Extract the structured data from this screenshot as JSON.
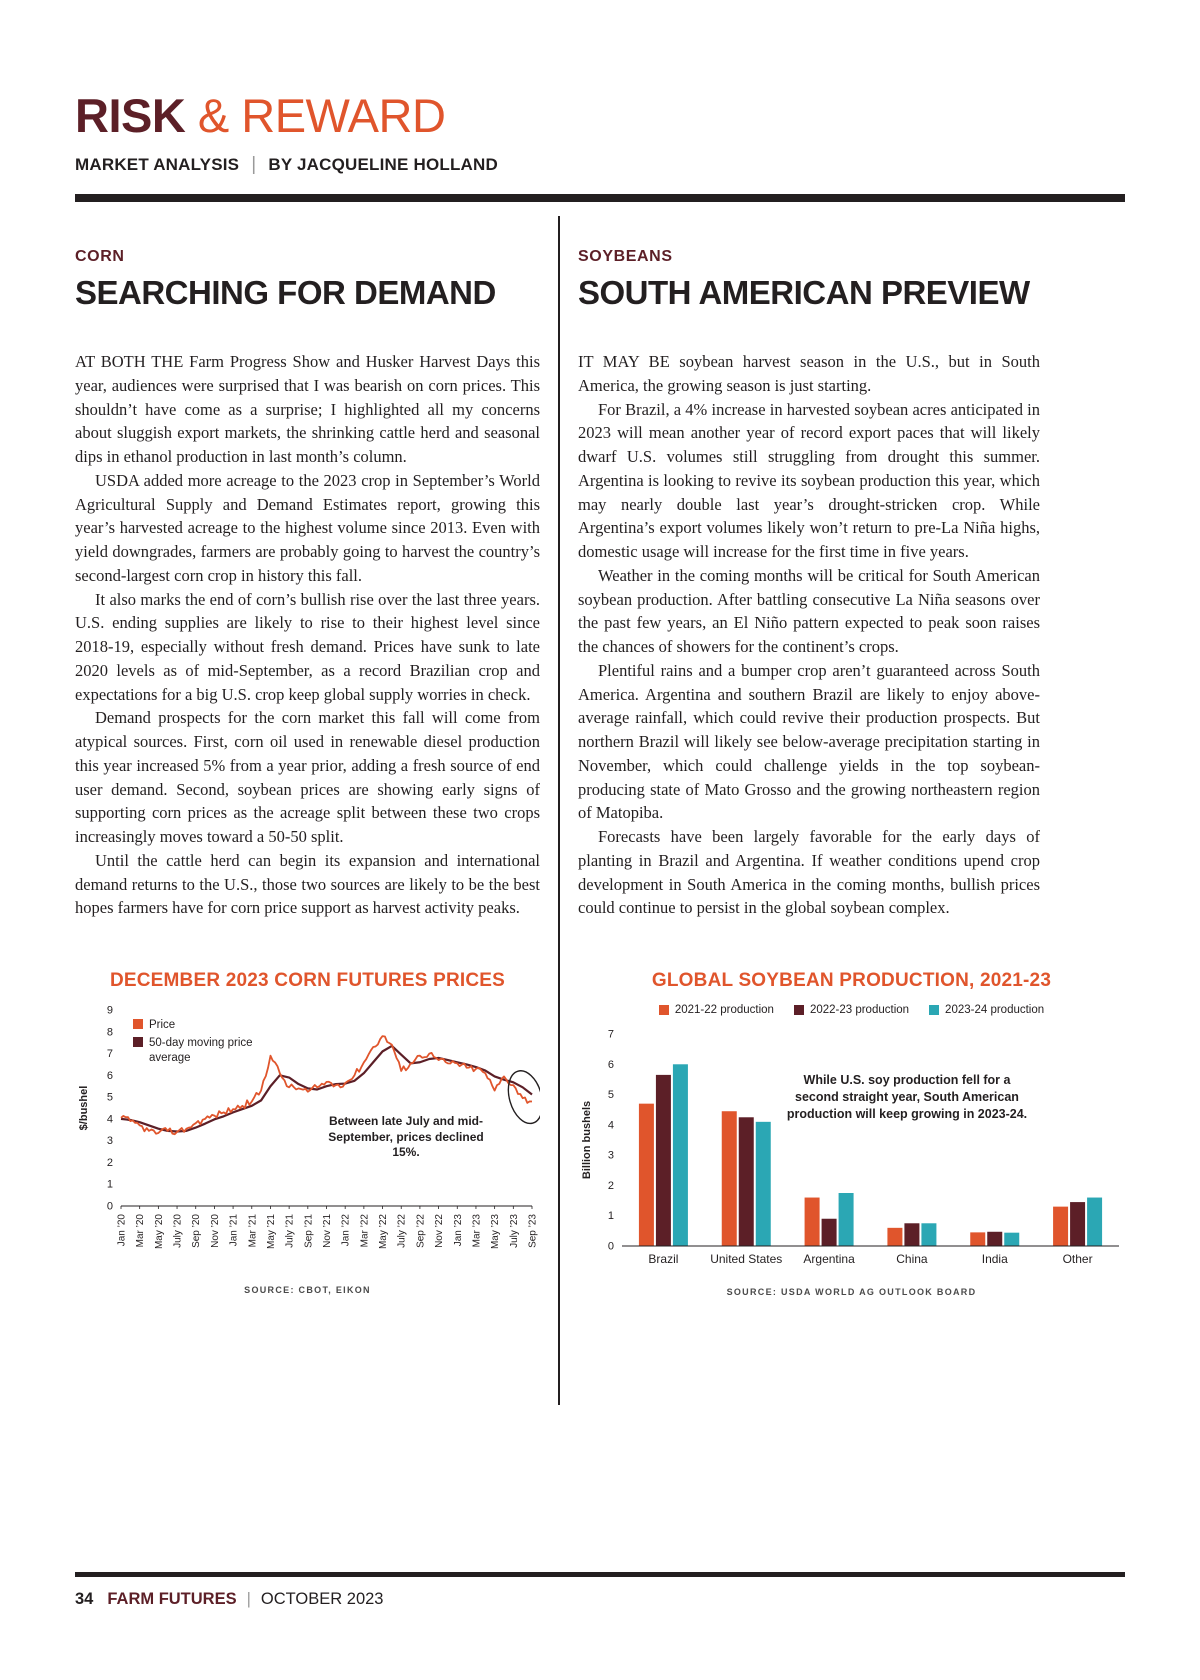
{
  "colors": {
    "maroon": "#5c1f27",
    "orange": "#e0552c",
    "teal": "#2ba7b4",
    "ink": "#231f20"
  },
  "header": {
    "title_primary": "RISK",
    "title_secondary": "& REWARD",
    "kicker": "MARKET ANALYSIS",
    "byline": "BY JACQUELINE HOLLAND"
  },
  "corn": {
    "kicker": "CORN",
    "headline": "SEARCHING FOR DEMAND",
    "paragraphs": [
      "AT BOTH THE Farm Progress Show and Husker Harvest Days this year, audiences were surprised that I was bearish on corn prices. This shouldn’t have come as a surprise; I highlighted all my concerns about sluggish export markets, the shrinking cattle herd and seasonal dips in ethanol production in last month’s column.",
      "USDA added more acreage to the 2023 crop in September’s World Agricultural Supply and Demand Estimates report, growing this year’s harvested acreage to the highest volume since 2013. Even with yield downgrades, farmers are probably going to harvest the country’s second-largest corn crop in history this fall.",
      "It also marks the end of corn’s bullish rise over the last three years. U.S. ending supplies are likely to rise to their highest level since 2018-19, especially without fresh demand. Prices have sunk to late 2020 levels as of mid-September, as a record Brazilian crop and expectations for a big U.S. crop keep global supply worries in check.",
      "Demand prospects for the corn market this fall will come from atypical sources. First, corn oil used in renewable diesel production this year increased 5% from a year prior, adding a fresh source of end user demand. Second, soybean prices are showing early signs of supporting corn prices as the acreage split between these two crops increasingly moves toward a 50-50 split.",
      "Until the cattle herd can begin its expansion and international demand returns to the U.S., those two sources are likely to be the best hopes farmers have for corn price support as harvest activity peaks."
    ]
  },
  "soybeans": {
    "kicker": "SOYBEANS",
    "headline": "SOUTH AMERICAN PREVIEW",
    "paragraphs": [
      "IT MAY BE soybean harvest season in the U.S., but in South America, the growing season is just starting.",
      "For Brazil, a 4% increase in harvested soybean acres anticipated in 2023 will mean another year of record export paces that will likely dwarf U.S. volumes still struggling from drought this summer. Argentina is looking to revive its soybean production this year, which may nearly double last year’s drought-stricken crop. While Argentina’s export volumes likely won’t return to pre-La Niña highs, domestic usage will increase for the first time in five years.",
      "Weather in the coming months will be critical for South American soybean production. After battling consecutive La Niña seasons over the past few years, an El Niño pattern expected to peak soon raises the chances of showers for the continent’s crops.",
      "Plentiful rains and a bumper crop aren’t guaranteed across South America. Argentina and southern Brazil are likely to enjoy above-average rainfall, which could revive their production prospects. But northern Brazil will likely see below-average precipitation starting in November, which could challenge yields in the top soybean-producing state of Mato Grosso and the growing northeastern region of Matopiba.",
      "Forecasts have been largely favorable for the early days of planting in Brazil and Argentina. If weather conditions upend crop development in South America in the coming months, bullish prices could continue to persist in the global soybean complex."
    ]
  },
  "chart_data": [
    {
      "type": "line",
      "title": "DECEMBER 2023 CORN FUTURES PRICES",
      "ylabel": "$/bushel",
      "ylim": [
        0,
        9
      ],
      "yticks": [
        0,
        1,
        2,
        3,
        4,
        5,
        6,
        7,
        8,
        9
      ],
      "x_labels": [
        "Jan ’20",
        "Mar ’20",
        "May ’20",
        "July ’20",
        "Sep ’20",
        "Nov ’20",
        "Jan ’21",
        "Mar ’21",
        "May ’21",
        "July ’21",
        "Sep ’21",
        "Nov ’21",
        "Jan ’22",
        "Mar ’22",
        "May ’22",
        "July ’22",
        "Sep ’22",
        "Nov ’22",
        "Jan ’23",
        "Mar ’23",
        "May ’23",
        "July ’23",
        "Sep ’23"
      ],
      "series": [
        {
          "name": "Price",
          "color": "#e0552c",
          "values": [
            4.05,
            3.9,
            3.7,
            3.45,
            3.35,
            3.45,
            3.4,
            3.55,
            3.8,
            4.0,
            4.15,
            4.3,
            4.45,
            4.6,
            4.8,
            5.3,
            6.9,
            6.1,
            5.45,
            5.4,
            5.25,
            5.45,
            5.7,
            5.55,
            5.65,
            6.0,
            6.6,
            7.3,
            7.8,
            7.4,
            6.2,
            6.55,
            6.9,
            7.0,
            6.7,
            6.55,
            6.55,
            6.35,
            6.3,
            6.1,
            5.3,
            5.95,
            5.55,
            4.95,
            4.8
          ]
        },
        {
          "name": "50-day moving price average",
          "color": "#5c1f27",
          "values": [
            4.0,
            3.95,
            3.85,
            3.7,
            3.55,
            3.45,
            3.42,
            3.45,
            3.6,
            3.78,
            3.98,
            4.12,
            4.3,
            4.45,
            4.6,
            4.85,
            5.5,
            6.0,
            5.9,
            5.6,
            5.4,
            5.35,
            5.5,
            5.6,
            5.62,
            5.75,
            6.1,
            6.6,
            7.1,
            7.35,
            6.95,
            6.55,
            6.6,
            6.75,
            6.8,
            6.7,
            6.6,
            6.5,
            6.38,
            6.22,
            5.95,
            5.8,
            5.68,
            5.45,
            5.12
          ]
        }
      ],
      "annotation": "Between late July and mid-September, prices declined 15%.",
      "source": "SOURCE: CBOT, EIKON",
      "legend_position": "top-left",
      "grid": false
    },
    {
      "type": "bar",
      "title": "GLOBAL SOYBEAN PRODUCTION, 2021-23",
      "ylabel": "Billion bushels",
      "ylim": [
        0,
        7
      ],
      "yticks": [
        0,
        1,
        2,
        3,
        4,
        5,
        6,
        7
      ],
      "categories": [
        "Brazil",
        "United States",
        "Argentina",
        "China",
        "India",
        "Other"
      ],
      "series": [
        {
          "name": "2021-22 production",
          "color": "#e0552c",
          "values": [
            4.7,
            4.45,
            1.6,
            0.6,
            0.45,
            1.3
          ]
        },
        {
          "name": "2022-23 production",
          "color": "#5c1f27",
          "values": [
            5.65,
            4.25,
            0.9,
            0.75,
            0.47,
            1.45
          ]
        },
        {
          "name": "2023-24 production",
          "color": "#2ba7b4",
          "values": [
            6.0,
            4.1,
            1.75,
            0.75,
            0.44,
            1.6
          ]
        }
      ],
      "annotation": "While U.S. soy production fell for a second straight year, South American production will keep growing in 2023-24.",
      "source": "SOURCE: USDA WORLD AG OUTLOOK BOARD",
      "legend_position": "top-center",
      "grid": false
    }
  ],
  "page": {
    "footer": {
      "page_number": "34",
      "magazine": "FARM FUTURES",
      "issue": "OCTOBER 2023"
    }
  }
}
